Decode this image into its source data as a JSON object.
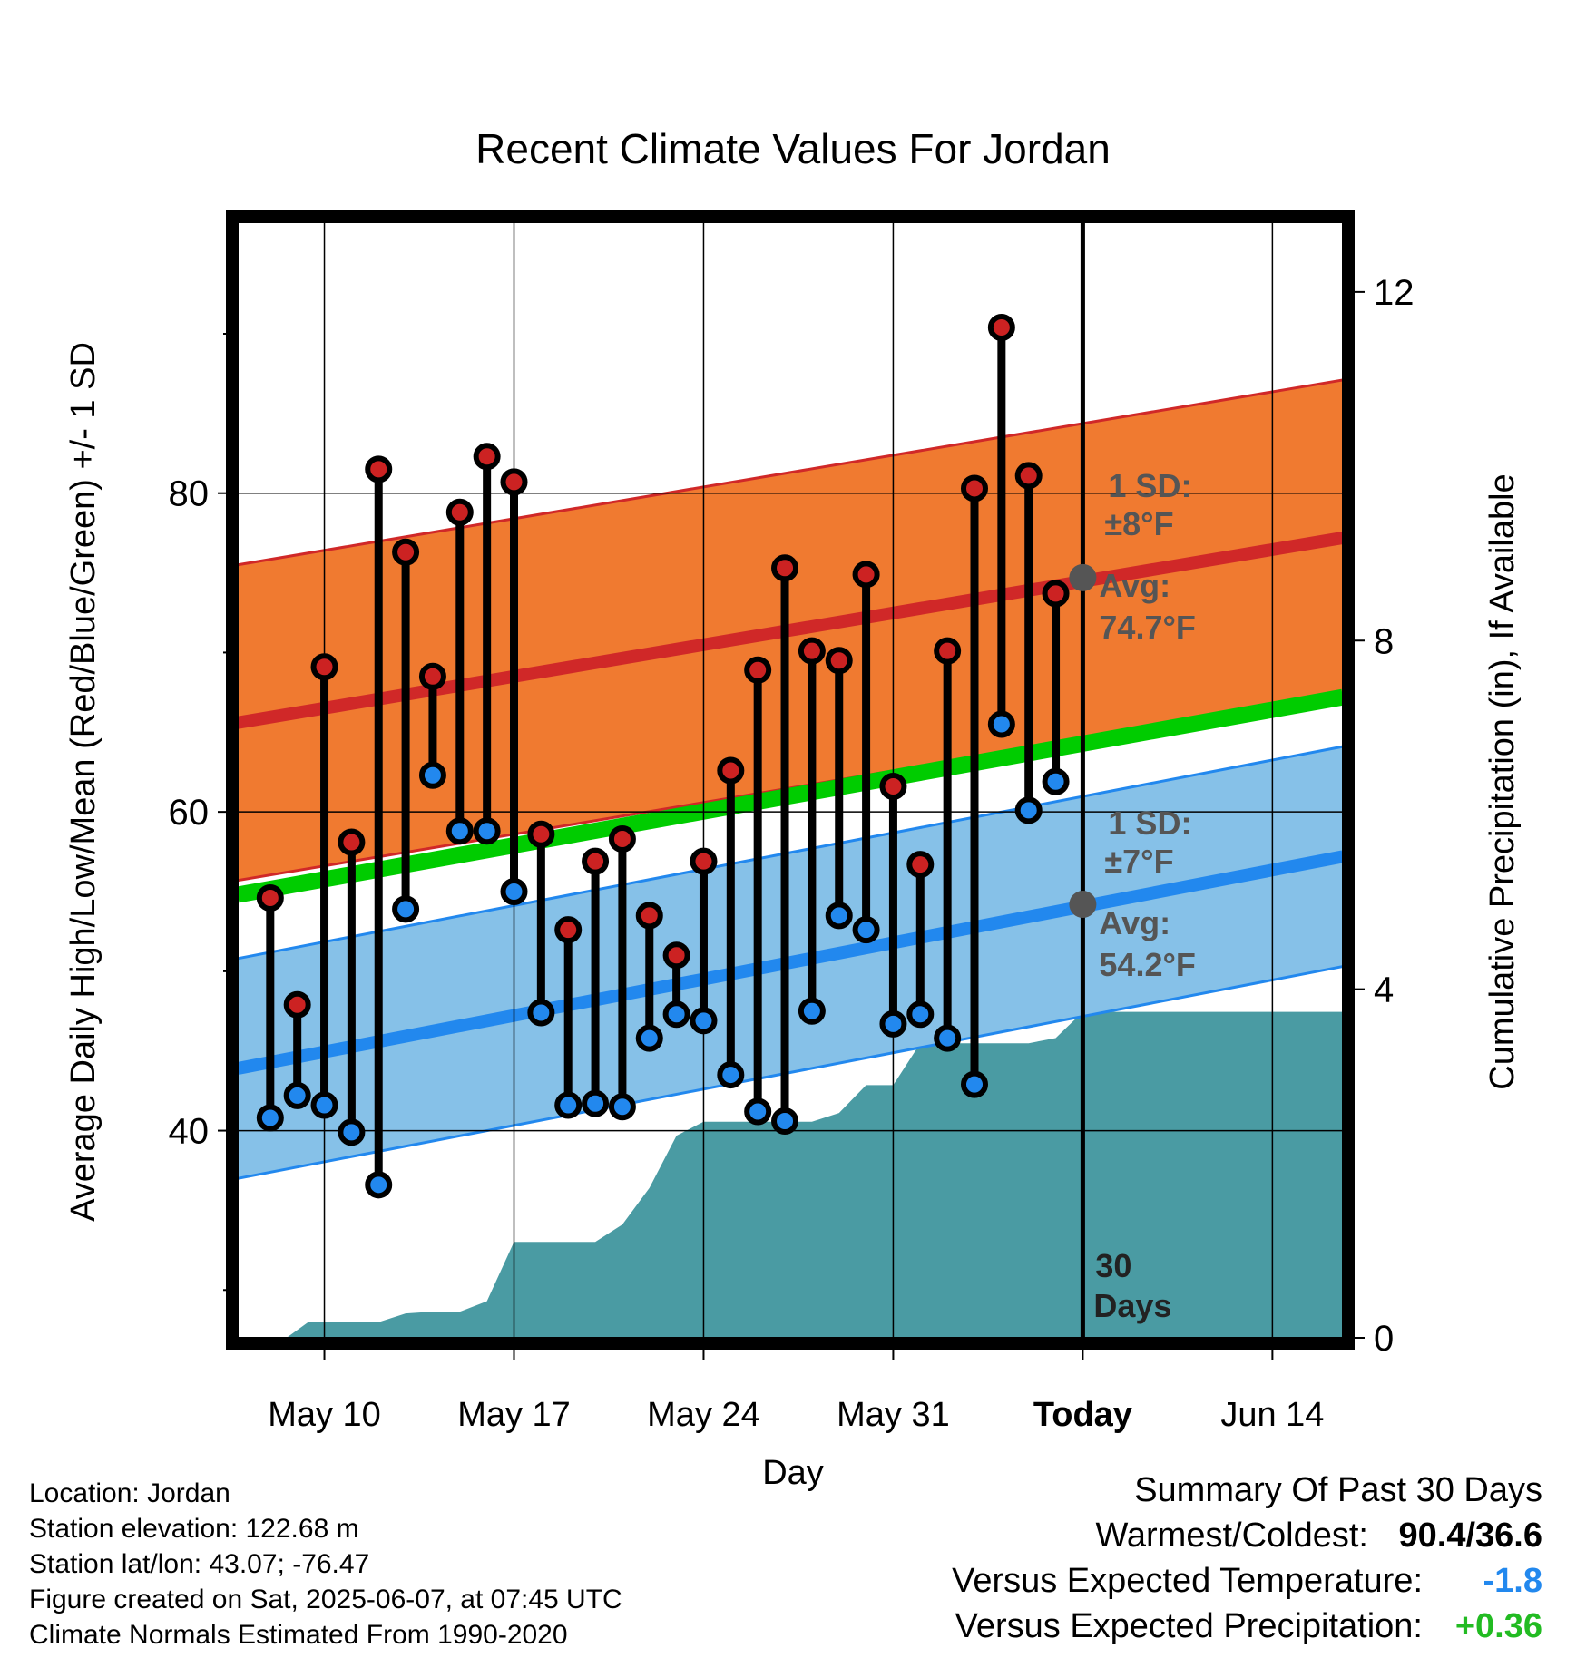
{
  "chart_data": {
    "type": "line",
    "title": "Recent Climate Values For Jordan",
    "xlabel": "Day",
    "ylabel_left": "Average Daily High/Low/Mean (Red/Blue/Green) +/- 1 SD",
    "ylabel_right": "Cumulative Precipitation (in), If Available",
    "x_tick_labels": [
      "May 10",
      "May 17",
      "May 24",
      "May 31",
      "Today",
      "Jun 14"
    ],
    "x_tick_days": [
      10,
      17,
      24,
      31,
      38,
      45
    ],
    "x_range_days": [
      6.8,
      47.6
    ],
    "y_left_range": [
      27,
      97
    ],
    "y_left_ticks": [
      40,
      60,
      80
    ],
    "y_right_range": [
      0,
      12.8
    ],
    "y_right_ticks": [
      0,
      4,
      8,
      12
    ],
    "today_day": 38,
    "days_label_top": "30",
    "days_label_bottom": "Days",
    "high_band": {
      "name": "High",
      "color": "#f07a30",
      "line_color": "#d02828",
      "mean_start": 65.6,
      "mean_end": 77.2,
      "sd_label": "1 SD:",
      "sd_value": "±8°F",
      "avg_label": "Avg:",
      "avg_value": "74.7°F",
      "avg_today": 74.7
    },
    "low_band": {
      "name": "Low",
      "color": "#86c1e8",
      "line_color": "#2288ee",
      "mean_start": 43.9,
      "mean_end": 57.2,
      "sd_label": "1 SD:",
      "sd_value": "±7°F",
      "avg_label": "Avg:",
      "avg_value": "54.2°F",
      "avg_today": 54.2
    },
    "mean_line": {
      "name": "Mean",
      "color": "#00cc00",
      "start": 54.8,
      "end": 67.2
    },
    "series": [
      {
        "name": "Daily High/Low",
        "days": [
          8,
          9,
          10,
          11,
          12,
          13,
          14,
          15,
          16,
          17,
          18,
          19,
          20,
          21,
          22,
          23,
          24,
          25,
          26,
          27,
          28,
          29,
          30,
          31,
          32,
          33,
          34,
          35,
          36,
          37
        ],
        "high": [
          54.6,
          47.9,
          69.1,
          58.1,
          81.5,
          76.3,
          68.5,
          78.8,
          82.3,
          80.7,
          58.6,
          52.6,
          56.9,
          58.3,
          53.5,
          51.0,
          56.9,
          62.6,
          68.9,
          75.3,
          70.1,
          69.5,
          74.9,
          61.6,
          56.7,
          70.1,
          80.3,
          90.4,
          81.1,
          73.7
        ],
        "low": [
          40.8,
          42.2,
          41.6,
          39.9,
          36.6,
          53.9,
          62.3,
          58.8,
          58.8,
          55.0,
          47.4,
          41.6,
          41.7,
          41.5,
          45.8,
          47.3,
          46.9,
          43.5,
          41.2,
          40.6,
          47.5,
          53.5,
          52.6,
          46.7,
          47.3,
          45.8,
          42.9,
          65.5,
          60.1,
          61.9
        ]
      }
    ],
    "precipitation": {
      "days": [
        8,
        8.6,
        9.4,
        10.2,
        11,
        12,
        13,
        14,
        15,
        16,
        17,
        18,
        19,
        20,
        21,
        22,
        23,
        24,
        25,
        26,
        27,
        28,
        29,
        30,
        31,
        32,
        33,
        34,
        35,
        36,
        37,
        38,
        39,
        40,
        41,
        42,
        43,
        44,
        45,
        46,
        47.6
      ],
      "values": [
        0,
        0,
        0.18,
        0.18,
        0.18,
        0.18,
        0.28,
        0.3,
        0.3,
        0.42,
        1.1,
        1.1,
        1.1,
        1.1,
        1.3,
        1.72,
        2.32,
        2.48,
        2.48,
        2.48,
        2.48,
        2.48,
        2.58,
        2.9,
        2.9,
        3.38,
        3.38,
        3.38,
        3.38,
        3.38,
        3.44,
        3.74,
        3.74,
        3.74,
        3.74,
        3.74,
        3.74,
        3.74,
        3.74,
        3.74,
        3.74
      ],
      "color": "#4a9ba3"
    }
  },
  "meta": {
    "lines": [
      "Location: Jordan",
      "Station elevation: 122.68 m",
      "Station lat/lon: 43.07; -76.47",
      "Figure created on Sat, 2025-06-07, at 07:45 UTC",
      "Climate Normals Estimated From 1990-2020"
    ]
  },
  "summary": {
    "title": "Summary Of Past 30 Days",
    "warmest_label": "Warmest/Coldest:",
    "warmest_value": "90.4/36.6",
    "temp_label": "Versus Expected Temperature:",
    "temp_value": "-1.8",
    "temp_color": "#2288ee",
    "precip_label": "Versus Expected Precipitation:",
    "precip_value": "+0.36",
    "precip_color": "#22bb22"
  }
}
